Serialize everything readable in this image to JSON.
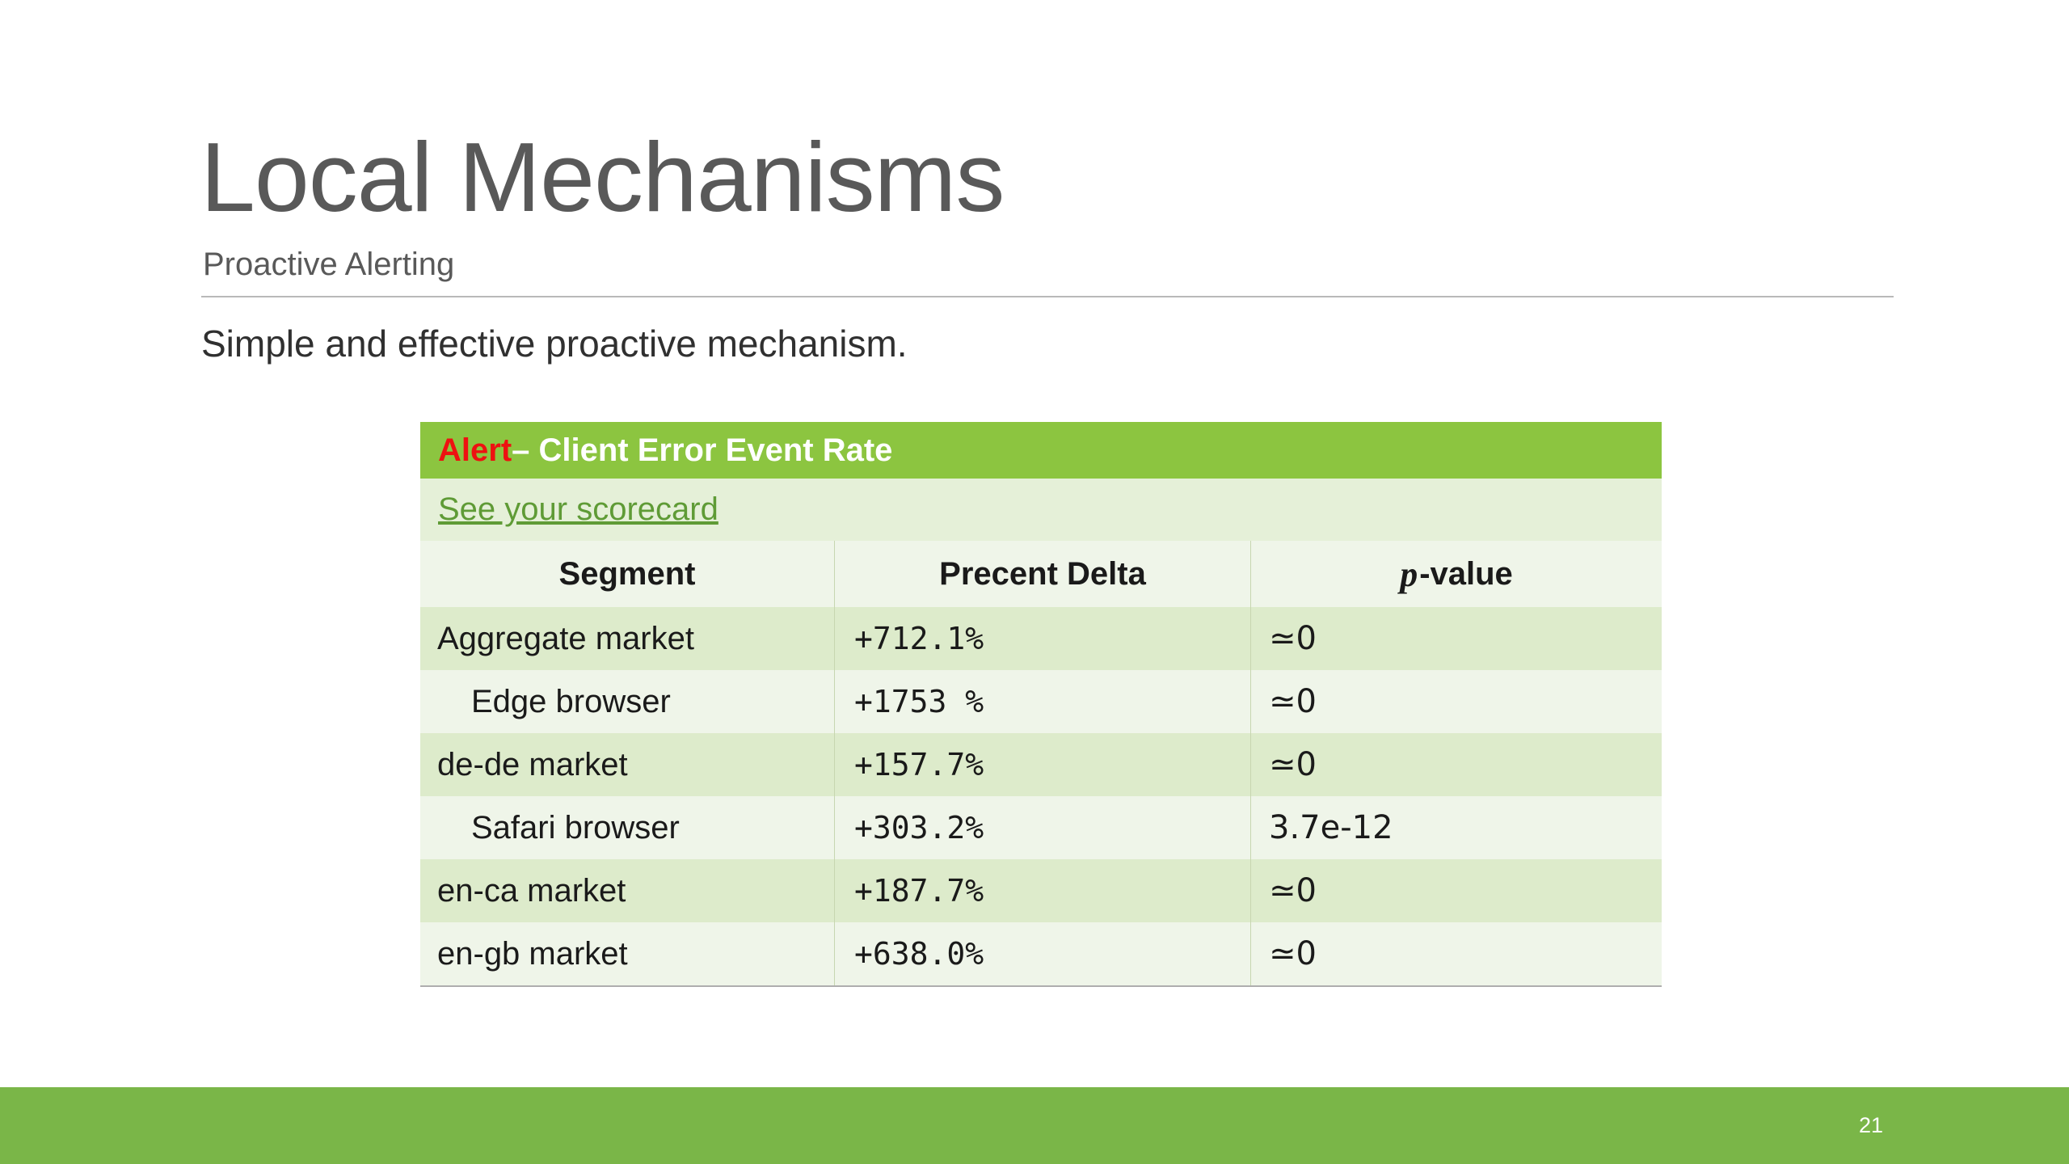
{
  "slide": {
    "title": "Local Mechanisms",
    "subtitle": "Proactive Alerting",
    "body_text": "Simple and effective proactive mechanism.",
    "page_number": "21"
  },
  "table": {
    "header": {
      "alert_word": "Alert",
      "title_rest": " – Client Error Event Rate"
    },
    "link_text": "See your scorecard",
    "columns": {
      "segment": "Segment",
      "delta": "Precent Delta",
      "pvalue_italic": "p",
      "pvalue_rest": "-value"
    },
    "rows": [
      {
        "segment": "Aggregate market",
        "delta": "+712.1%",
        "pvalue": "≃0"
      },
      {
        "segment": "Edge browser",
        "delta": "+1753 %",
        "pvalue": "≃0"
      },
      {
        "segment": "de-de market",
        "delta": "+157.7%",
        "pvalue": "≃0"
      },
      {
        "segment": "Safari browser",
        "delta": "+303.2%",
        "pvalue": "3.7e-12"
      },
      {
        "segment": "en-ca market",
        "delta": "+187.7%",
        "pvalue": "≃0"
      },
      {
        "segment": "en-gb market",
        "delta": "+638.0%",
        "pvalue": "≃0"
      }
    ],
    "colors": {
      "header_green": "#8CC540",
      "alert_red": "#EE1111",
      "link_green": "#5F9B36",
      "row_dark": "#DDEBCB",
      "row_light": "#EFF5E9",
      "link_row_bg": "#E5F0D8"
    }
  },
  "footer": {
    "bar_green": "#7AB648"
  }
}
